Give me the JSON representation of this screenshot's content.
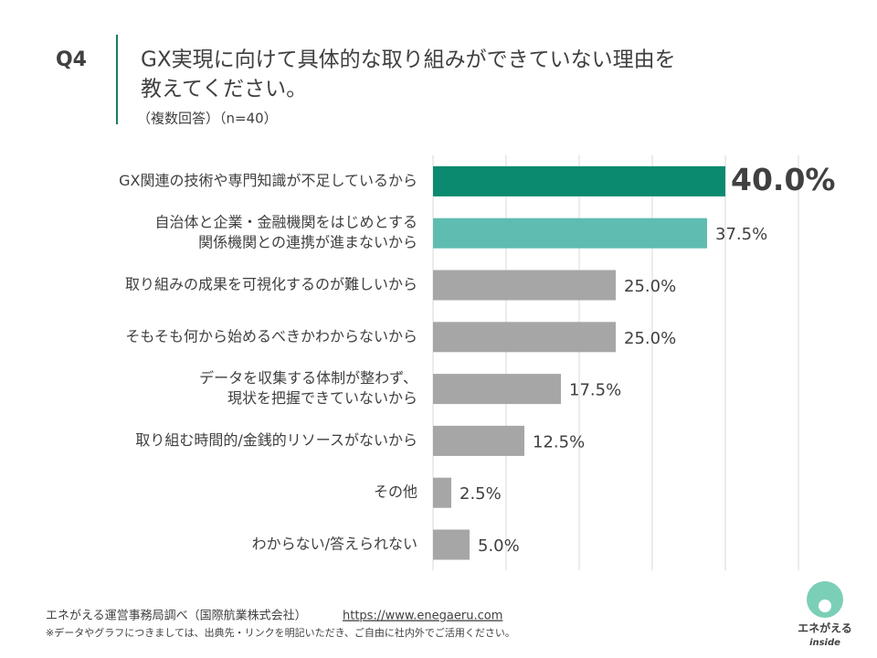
{
  "question": "Q4",
  "chart_data": {
    "type": "hbar",
    "title": [
      "GX実現に向けて具体的な取り組みができていない理由を",
      "教えてください。"
    ],
    "subtitle": "（複数回答）（n=40）",
    "categories": [
      [
        "GX関連の技術や専門知識が不足しているから"
      ],
      [
        "自治体と企業・金融機関をはじめとする",
        "関係機関との連携が進まないから"
      ],
      [
        "取り組みの成果を可視化するのが難しいから"
      ],
      [
        "そもそも何から始めるべきかわからないから"
      ],
      [
        "データを収集する体制が整わず、",
        "現状を把握できていないから"
      ],
      [
        "取り組む時間的/金銭的リソースがないから"
      ],
      [
        "その他"
      ],
      [
        "わからない/答えられない"
      ]
    ],
    "values": [
      40.0,
      37.5,
      25.0,
      25.0,
      17.5,
      12.5,
      2.5,
      5.0
    ],
    "value_labels": [
      "40.0%",
      "37.5%",
      "25.0%",
      "25.0%",
      "17.5%",
      "12.5%",
      "2.5%",
      "5.0%"
    ],
    "colors": [
      "#0b8a6f",
      "#5fbcb1",
      "#a6a6a6",
      "#a6a6a6",
      "#a6a6a6",
      "#a6a6a6",
      "#a6a6a6",
      "#a6a6a6"
    ],
    "xlim": [
      0,
      50
    ],
    "xticks": [
      0,
      10,
      20,
      30,
      40,
      50
    ],
    "grid": true
  },
  "footer": {
    "source": "エネがえる運営事務局調べ（国際航業株式会社）",
    "url": "https://www.enegaeru.com",
    "note": "※データやグラフにつきましては、出典先・リンクを明記いただき、ご自由に社内外でご活用ください。"
  },
  "logo": {
    "name": "エネがえる",
    "sub": "inside"
  }
}
